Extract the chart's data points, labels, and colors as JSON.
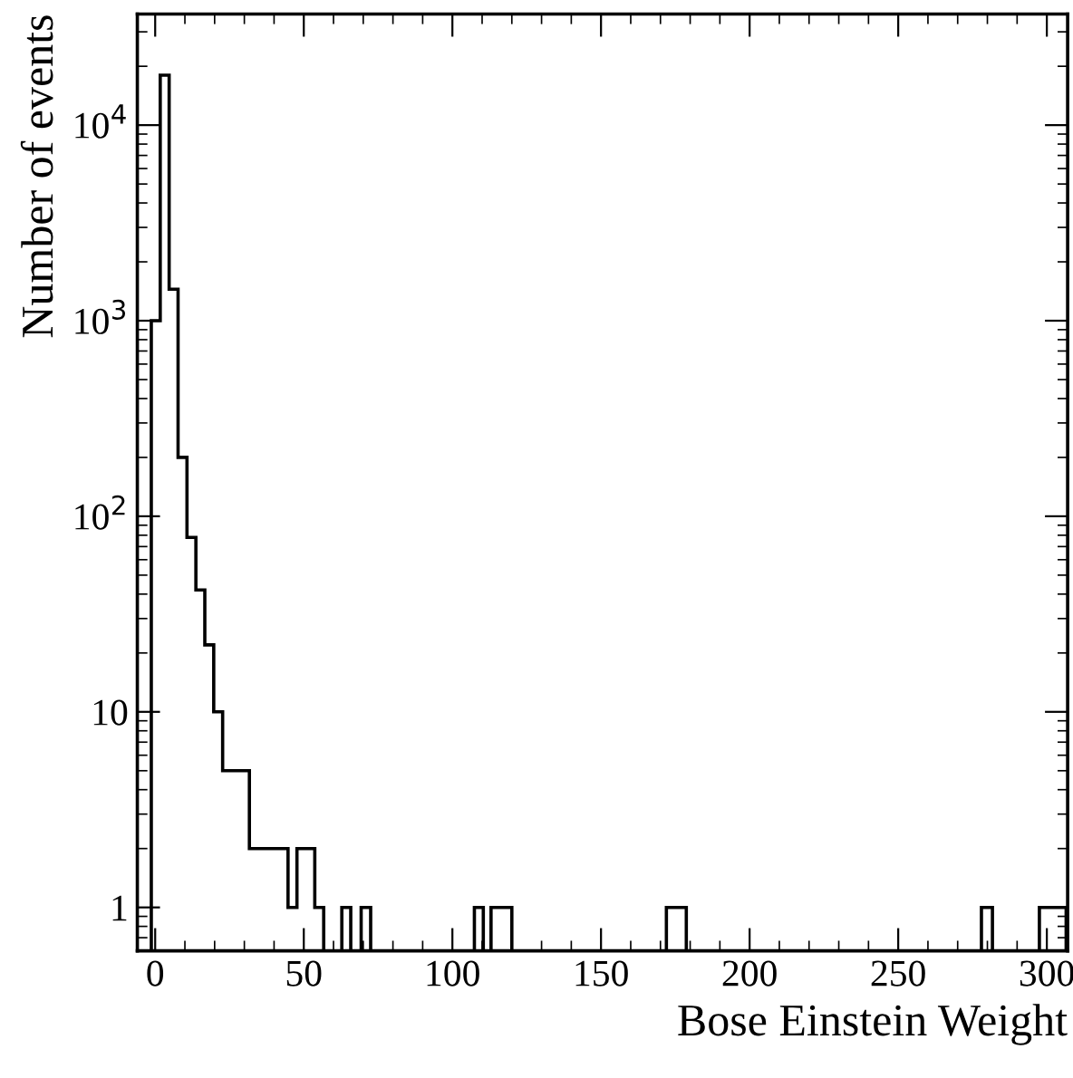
{
  "chart_data": {
    "type": "histogram",
    "xlabel": "Bose Einstein Weight",
    "ylabel": "Number of events",
    "log": "y",
    "bins": [
      -1.3,
      1.7,
      4.7,
      7.7,
      10.7,
      13.7,
      16.7,
      19.7,
      22.7,
      25.7,
      28.7,
      31.7,
      35,
      38,
      41.5,
      44.7,
      47.7,
      50.7,
      53.7,
      56.7,
      62.8,
      65.8,
      69.3,
      72.5,
      107.4,
      110.4,
      113,
      116.5,
      120,
      172,
      175.3,
      178.7,
      278,
      281.7,
      297.5,
      300.5,
      303.5,
      306.5
    ],
    "values": [
      1000,
      18000,
      1450,
      200,
      78,
      42,
      22,
      10,
      5,
      5,
      5,
      2,
      2,
      2,
      2,
      1,
      2,
      2,
      1,
      null,
      1,
      null,
      1,
      null,
      1,
      null,
      1,
      1,
      null,
      1,
      1,
      null,
      1,
      null,
      1,
      1,
      1
    ],
    "color": "#000000",
    "xlim": [
      -6,
      307
    ],
    "ylim": [
      0.6,
      37000
    ],
    "xticks": [
      0,
      50,
      100,
      150,
      200,
      250,
      300
    ],
    "yticks": [
      1,
      10,
      {
        "value": 100,
        "label": "10$^{2}$"
      },
      {
        "value": 1000,
        "label": "10$^{3}$"
      },
      {
        "value": 10000,
        "label": "10$^{4}$"
      }
    ],
    "grid": false,
    "legend": false
  }
}
